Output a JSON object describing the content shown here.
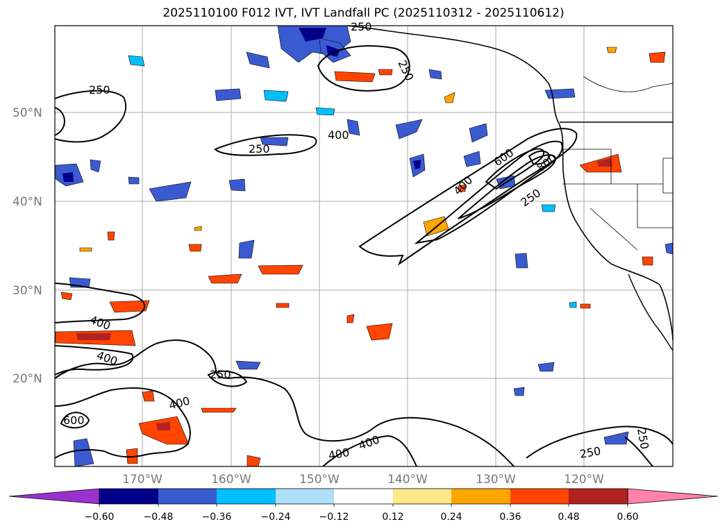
{
  "title": "2025110100 F012 IVT, IVT Landfall PC (2025110312 - 2025110612)",
  "lat_labels": [
    "50°N",
    "40°N",
    "30°N",
    "20°N"
  ],
  "lon_labels": [
    "170°W",
    "160°W",
    "150°W",
    "140°W",
    "130°W",
    "120°W"
  ],
  "colorbar": {
    "ticks": [
      "−0.60",
      "−0.48",
      "−0.36",
      "−0.24",
      "−0.12",
      "0.12",
      "0.24",
      "0.36",
      "0.48",
      "0.60"
    ],
    "colors": [
      "#9932cc",
      "#00008b",
      "#3a5bd0",
      "#00bfff",
      "#aee0fa",
      "#ffffff",
      "#ffe88a",
      "#ffa500",
      "#ff4500",
      "#b22222",
      "#ff82ab"
    ]
  },
  "contour_labels": [
    "250",
    "250",
    "250",
    "250",
    "400",
    "400",
    "400",
    "400",
    "250",
    "400",
    "600",
    "400",
    "400",
    "250",
    "250",
    "600",
    "800",
    "250"
  ]
}
